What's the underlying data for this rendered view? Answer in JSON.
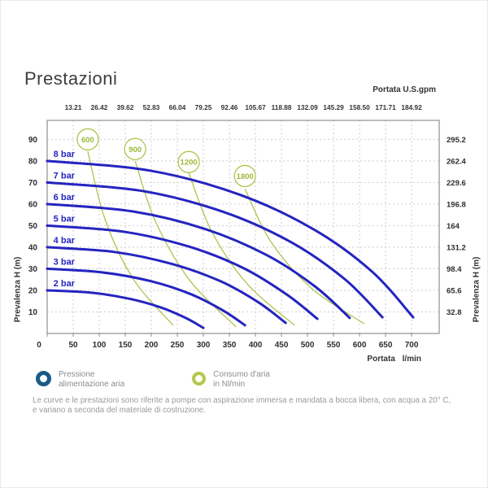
{
  "page": {
    "title": "Prestazioni",
    "footer_line1": "Le curve e le prestazioni sono riferite a pompe con aspirazione immersa e mandata a bocca libera, con acqua a 20° C,",
    "footer_line2": "e variano a seconda del materiale di costruzione."
  },
  "legend": {
    "pressure": {
      "line1": "Pressione",
      "line2": "alimentazione aria",
      "color": "#1b5a8a"
    },
    "air": {
      "line1": "Consumo d'aria",
      "line2": "in Nl/min",
      "color": "#b4c74e"
    }
  },
  "chart_data": {
    "type": "line",
    "title": "Prestazioni",
    "grid": true,
    "axes": {
      "bottom": {
        "label": "Portata l/min",
        "ticks": [
          0,
          50,
          100,
          150,
          200,
          250,
          300,
          350,
          400,
          450,
          500,
          550,
          600,
          650,
          700
        ],
        "range": [
          0,
          753
        ]
      },
      "top": {
        "label": "Portata U.S.gpm",
        "ticks": [
          "13.21",
          "26.42",
          "39.62",
          "52.83",
          "66.04",
          "79.25",
          "92.46",
          "105.67",
          "118.88",
          "132.09",
          "145.29",
          "158.50",
          "171.71",
          "184.92"
        ],
        "tick_positions_lmin": [
          50,
          100,
          150,
          200,
          250,
          300,
          350,
          400,
          450,
          500,
          550,
          600,
          650,
          700
        ]
      },
      "left": {
        "label": "Prevalenza H (m)",
        "ticks": [
          10,
          20,
          30,
          40,
          50,
          60,
          70,
          80,
          90
        ],
        "range": [
          0,
          98.8
        ]
      },
      "right": {
        "label": "Prevalenza H (m)",
        "ticks": [
          "32.8",
          "65.6",
          "98.4",
          "131.2",
          "164",
          "196.8",
          "229.6",
          "262.4",
          "295.2"
        ],
        "tick_positions_m": [
          10,
          20,
          30,
          40,
          50,
          60,
          70,
          80,
          90
        ]
      }
    },
    "pressure_curves": {
      "color": "#2424c0",
      "label_color": "#2424c0",
      "series": [
        {
          "name": "2 bar",
          "points": [
            [
              0,
              20
            ],
            [
              85,
              18.9
            ],
            [
              158,
              16.1
            ],
            [
              218,
              12.1
            ],
            [
              266,
              7.2
            ],
            [
              300,
              2.6
            ]
          ]
        },
        {
          "name": "3 bar",
          "points": [
            [
              0,
              30
            ],
            [
              107,
              28.3
            ],
            [
              200,
              24.2
            ],
            [
              276,
              18.2
            ],
            [
              337,
              10.8
            ],
            [
              380,
              3.8
            ]
          ]
        },
        {
          "name": "4 bar",
          "points": [
            [
              0,
              40
            ],
            [
              129,
              37.8
            ],
            [
              240,
              32.2
            ],
            [
              333,
              24.2
            ],
            [
              406,
              14.4
            ],
            [
              458,
              4.9
            ]
          ]
        },
        {
          "name": "5 bar",
          "points": [
            [
              0,
              50
            ],
            [
              146,
              47.2
            ],
            [
              272,
              40.3
            ],
            [
              377,
              30.3
            ],
            [
              460,
              18.1
            ],
            [
              519,
              6.8
            ]
          ]
        },
        {
          "name": "6 bar",
          "points": [
            [
              0,
              60
            ],
            [
              164,
              56.6
            ],
            [
              305,
              48.3
            ],
            [
              422,
              36.3
            ],
            [
              515,
              21.7
            ],
            [
              581,
              7.2
            ]
          ]
        },
        {
          "name": "7 bar",
          "points": [
            [
              0,
              70
            ],
            [
              182,
              66.1
            ],
            [
              338,
              56.4
            ],
            [
              468,
              42.4
            ],
            [
              571,
              25.3
            ],
            [
              644,
              7.5
            ]
          ]
        },
        {
          "name": "8 bar",
          "points": [
            [
              0,
              80
            ],
            [
              198,
              75.5
            ],
            [
              369,
              64.4
            ],
            [
              511,
              48.4
            ],
            [
              623,
              28.9
            ],
            [
              703,
              7.5
            ]
          ]
        }
      ]
    },
    "air_curves": {
      "color": "#b0c34c",
      "text_color": "#9cb838",
      "series": [
        {
          "name": "600",
          "bubble": [
            78,
            90
          ],
          "points": [
            [
              78,
              84.5
            ],
            [
              111,
              53
            ],
            [
              166,
              25
            ],
            [
              242,
              3.8
            ]
          ]
        },
        {
          "name": "900",
          "bubble": [
            169,
            85.5
          ],
          "points": [
            [
              169,
              80
            ],
            [
              208,
              52
            ],
            [
              274,
              24.6
            ],
            [
              363,
              3
            ]
          ]
        },
        {
          "name": "1200",
          "bubble": [
            272,
            79.5
          ],
          "points": [
            [
              272,
              74.5
            ],
            [
              315,
              47.8
            ],
            [
              383,
              23.3
            ],
            [
              475,
              3.8
            ]
          ]
        },
        {
          "name": "1800",
          "bubble": [
            380,
            73
          ],
          "points": [
            [
              380,
              67
            ],
            [
              429,
              42.8
            ],
            [
              507,
              21.1
            ],
            [
              609,
              4.5
            ]
          ]
        }
      ]
    }
  }
}
